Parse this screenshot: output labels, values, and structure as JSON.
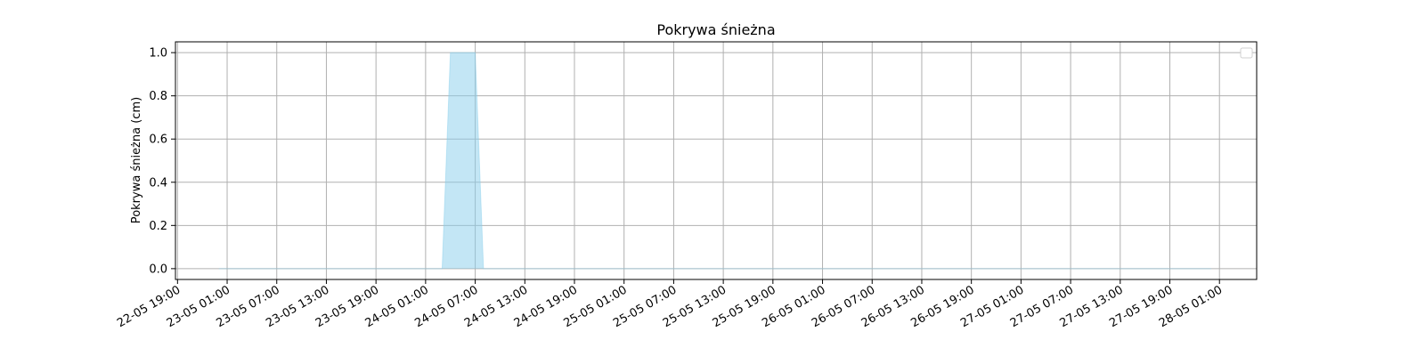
{
  "chart_data": {
    "type": "area",
    "title": "Pokrywa śnieżna",
    "xlabel": "",
    "ylabel": "Pokrywa śnieżna (cm)",
    "xlim": [
      "2025-05-22T18:45",
      "2025-05-28T05:30"
    ],
    "ylim": [
      -0.05,
      1.05
    ],
    "x_ticks": [
      "22-05 19:00",
      "23-05 01:00",
      "23-05 07:00",
      "23-05 13:00",
      "23-05 19:00",
      "24-05 01:00",
      "24-05 07:00",
      "24-05 13:00",
      "24-05 19:00",
      "25-05 01:00",
      "25-05 07:00",
      "25-05 13:00",
      "25-05 19:00",
      "26-05 01:00",
      "26-05 07:00",
      "26-05 13:00",
      "26-05 19:00",
      "27-05 01:00",
      "27-05 07:00",
      "27-05 13:00",
      "27-05 19:00",
      "28-05 01:00"
    ],
    "x_tick_values": [
      "2025-05-22T19:00",
      "2025-05-23T01:00",
      "2025-05-23T07:00",
      "2025-05-23T13:00",
      "2025-05-23T19:00",
      "2025-05-24T01:00",
      "2025-05-24T07:00",
      "2025-05-24T13:00",
      "2025-05-24T19:00",
      "2025-05-25T01:00",
      "2025-05-25T07:00",
      "2025-05-25T13:00",
      "2025-05-25T19:00",
      "2025-05-26T01:00",
      "2025-05-26T07:00",
      "2025-05-26T13:00",
      "2025-05-26T19:00",
      "2025-05-27T01:00",
      "2025-05-27T07:00",
      "2025-05-27T13:00",
      "2025-05-27T19:00",
      "2025-05-28T01:00"
    ],
    "y_ticks": [
      0.0,
      0.2,
      0.4,
      0.6,
      0.8,
      1.0
    ],
    "y_tick_labels": [
      "0.0",
      "0.2",
      "0.4",
      "0.6",
      "0.8",
      "1.0"
    ],
    "grid": true,
    "legend": "top-right",
    "series": [
      {
        "color": "#87ceeb",
        "x": [
          "2025-05-23T00:00",
          "2025-05-24T03:00",
          "2025-05-24T04:00",
          "2025-05-24T07:00",
          "2025-05-24T08:00",
          "2025-05-28T00:00"
        ],
        "values": [
          0,
          0,
          1,
          1,
          0,
          0
        ]
      }
    ]
  }
}
